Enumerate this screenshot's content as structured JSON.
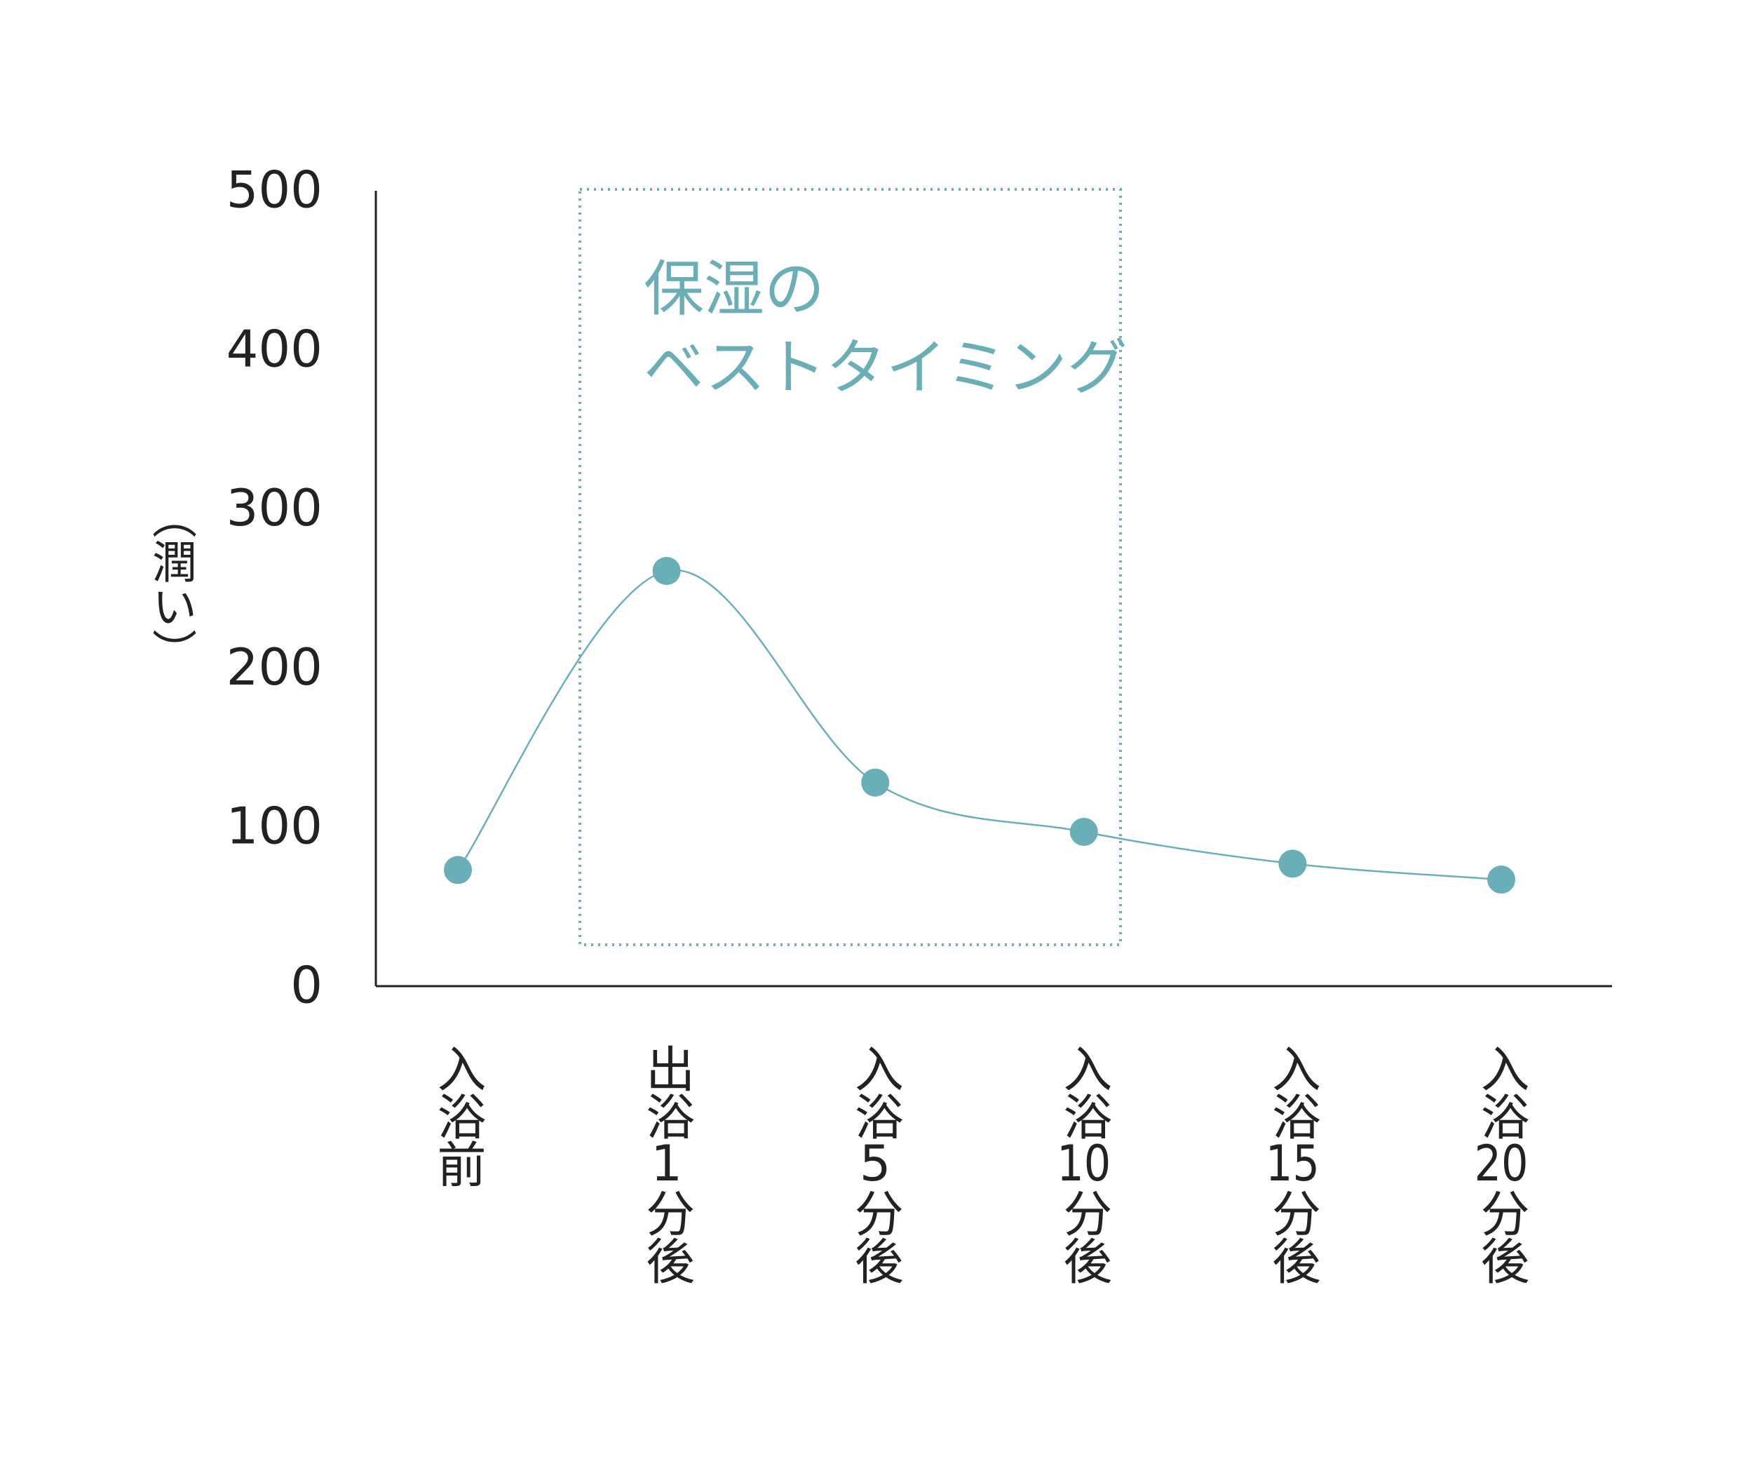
{
  "chart_data": {
    "type": "line",
    "y_label": "（潤い）",
    "annotation": [
      "保湿の",
      "ベストタイミング"
    ],
    "categories": [
      "入浴前",
      "出浴1分後",
      "入浴5分後",
      "入浴10分後",
      "入浴15分後",
      "入浴20分後"
    ],
    "values": [
      73,
      261,
      128,
      97,
      77,
      67
    ],
    "color": "#6aafb8",
    "ylim": [
      0,
      500
    ],
    "yticks": [
      0,
      100,
      200,
      300,
      400,
      500
    ],
    "grid": false
  }
}
